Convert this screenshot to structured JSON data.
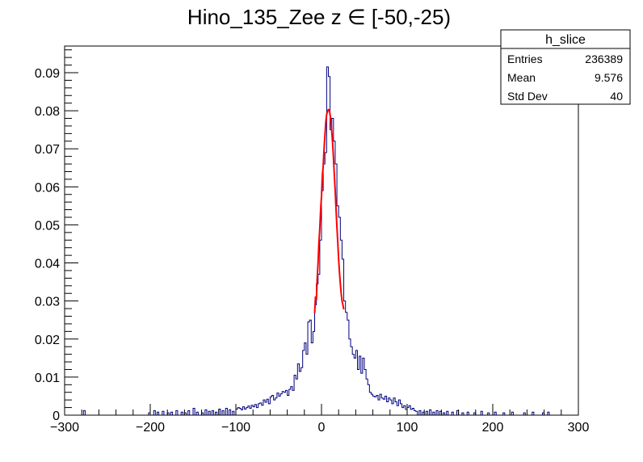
{
  "chart_data": {
    "type": "histogram",
    "title": "Hino_135_Zee z  ∈ [-50,-25)",
    "xlabel": "",
    "ylabel": "",
    "xlim": [
      -300,
      300
    ],
    "ylim": [
      0,
      0.097
    ],
    "x_ticks": [
      -300,
      -200,
      -100,
      0,
      100,
      200,
      300
    ],
    "x_tick_labels": [
      "−300",
      "−200",
      "−100",
      "0",
      "100",
      "200",
      "300"
    ],
    "y_ticks": [
      0,
      0.01,
      0.02,
      0.03,
      0.04,
      0.05,
      0.06,
      0.07,
      0.08,
      0.09
    ],
    "y_tick_labels": [
      "0",
      "0.01",
      "0.02",
      "0.03",
      "0.04",
      "0.05",
      "0.06",
      "0.07",
      "0.08",
      "0.09"
    ],
    "grid": false,
    "colors": {
      "histogram": "#000080",
      "fit": "#ff0000",
      "frame": "#000000"
    },
    "histogram": {
      "name": "h_slice",
      "bin_edges_start": -300,
      "bin_width": 2,
      "nonzero_bins": [
        {
          "x": -278,
          "y": 0.0012
        },
        {
          "x": -202,
          "y": 0.0006
        },
        {
          "x": -196,
          "y": 0.0012
        },
        {
          "x": -192,
          "y": 0.0008
        },
        {
          "x": -186,
          "y": 0.001
        },
        {
          "x": -180,
          "y": 0.0006
        },
        {
          "x": -176,
          "y": 0.0008
        },
        {
          "x": -170,
          "y": 0.0012
        },
        {
          "x": -164,
          "y": 0.0008
        },
        {
          "x": -160,
          "y": 0.0006
        },
        {
          "x": -156,
          "y": 0.0012
        },
        {
          "x": -150,
          "y": 0.0018
        },
        {
          "x": -146,
          "y": 0.0008
        },
        {
          "x": -140,
          "y": 0.0006
        },
        {
          "x": -136,
          "y": 0.0014
        },
        {
          "x": -132,
          "y": 0.001
        },
        {
          "x": -128,
          "y": 0.0012
        },
        {
          "x": -124,
          "y": 0.0008
        },
        {
          "x": -120,
          "y": 0.0016
        },
        {
          "x": -116,
          "y": 0.0012
        },
        {
          "x": -112,
          "y": 0.0018
        },
        {
          "x": -108,
          "y": 0.0014
        },
        {
          "x": -104,
          "y": 0.001
        },
        {
          "x": -100,
          "y": 0.0016
        },
        {
          "x": -98,
          "y": 0.002
        },
        {
          "x": -96,
          "y": 0.0018
        },
        {
          "x": -94,
          "y": 0.0014
        },
        {
          "x": -92,
          "y": 0.0022
        },
        {
          "x": -90,
          "y": 0.0016
        },
        {
          "x": -88,
          "y": 0.002
        },
        {
          "x": -86,
          "y": 0.0024
        },
        {
          "x": -84,
          "y": 0.0018
        },
        {
          "x": -82,
          "y": 0.0026
        },
        {
          "x": -80,
          "y": 0.0022
        },
        {
          "x": -78,
          "y": 0.0028
        },
        {
          "x": -76,
          "y": 0.002
        },
        {
          "x": -74,
          "y": 0.003
        },
        {
          "x": -72,
          "y": 0.0032
        },
        {
          "x": -70,
          "y": 0.0026
        },
        {
          "x": -68,
          "y": 0.004
        },
        {
          "x": -66,
          "y": 0.0034
        },
        {
          "x": -64,
          "y": 0.0042
        },
        {
          "x": -62,
          "y": 0.003
        },
        {
          "x": -60,
          "y": 0.0048
        },
        {
          "x": -58,
          "y": 0.0052
        },
        {
          "x": -56,
          "y": 0.004
        },
        {
          "x": -54,
          "y": 0.0045
        },
        {
          "x": -52,
          "y": 0.0058
        },
        {
          "x": -50,
          "y": 0.005
        },
        {
          "x": -48,
          "y": 0.0056
        },
        {
          "x": -46,
          "y": 0.0062
        },
        {
          "x": -44,
          "y": 0.006
        },
        {
          "x": -42,
          "y": 0.0065
        },
        {
          "x": -40,
          "y": 0.0052
        },
        {
          "x": -38,
          "y": 0.0068
        },
        {
          "x": -36,
          "y": 0.0075
        },
        {
          "x": -34,
          "y": 0.0065
        },
        {
          "x": -32,
          "y": 0.0105
        },
        {
          "x": -30,
          "y": 0.0095
        },
        {
          "x": -28,
          "y": 0.0135
        },
        {
          "x": -26,
          "y": 0.0115
        },
        {
          "x": -24,
          "y": 0.0125
        },
        {
          "x": -22,
          "y": 0.017
        },
        {
          "x": -20,
          "y": 0.019
        },
        {
          "x": -18,
          "y": 0.016
        },
        {
          "x": -16,
          "y": 0.0245
        },
        {
          "x": -14,
          "y": 0.025
        },
        {
          "x": -12,
          "y": 0.019
        },
        {
          "x": -10,
          "y": 0.022
        },
        {
          "x": -8,
          "y": 0.029
        },
        {
          "x": -6,
          "y": 0.0345
        },
        {
          "x": -4,
          "y": 0.037
        },
        {
          "x": -2,
          "y": 0.046
        },
        {
          "x": 0,
          "y": 0.059
        },
        {
          "x": 2,
          "y": 0.066
        },
        {
          "x": 4,
          "y": 0.069
        },
        {
          "x": 6,
          "y": 0.0915
        },
        {
          "x": 8,
          "y": 0.089
        },
        {
          "x": 10,
          "y": 0.075
        },
        {
          "x": 12,
          "y": 0.078
        },
        {
          "x": 14,
          "y": 0.072
        },
        {
          "x": 16,
          "y": 0.066
        },
        {
          "x": 18,
          "y": 0.055
        },
        {
          "x": 20,
          "y": 0.052
        },
        {
          "x": 22,
          "y": 0.046
        },
        {
          "x": 24,
          "y": 0.041
        },
        {
          "x": 26,
          "y": 0.03
        },
        {
          "x": 28,
          "y": 0.027
        },
        {
          "x": 30,
          "y": 0.025
        },
        {
          "x": 32,
          "y": 0.02
        },
        {
          "x": 34,
          "y": 0.018
        },
        {
          "x": 36,
          "y": 0.016
        },
        {
          "x": 38,
          "y": 0.015
        },
        {
          "x": 40,
          "y": 0.017
        },
        {
          "x": 42,
          "y": 0.012
        },
        {
          "x": 44,
          "y": 0.0155
        },
        {
          "x": 46,
          "y": 0.011
        },
        {
          "x": 48,
          "y": 0.015
        },
        {
          "x": 50,
          "y": 0.012
        },
        {
          "x": 52,
          "y": 0.0095
        },
        {
          "x": 54,
          "y": 0.008
        },
        {
          "x": 56,
          "y": 0.006
        },
        {
          "x": 58,
          "y": 0.0055
        },
        {
          "x": 60,
          "y": 0.005
        },
        {
          "x": 62,
          "y": 0.0048
        },
        {
          "x": 64,
          "y": 0.0052
        },
        {
          "x": 66,
          "y": 0.004
        },
        {
          "x": 68,
          "y": 0.0055
        },
        {
          "x": 70,
          "y": 0.0045
        },
        {
          "x": 72,
          "y": 0.0042
        },
        {
          "x": 74,
          "y": 0.005
        },
        {
          "x": 76,
          "y": 0.0035
        },
        {
          "x": 78,
          "y": 0.0045
        },
        {
          "x": 80,
          "y": 0.004
        },
        {
          "x": 82,
          "y": 0.003
        },
        {
          "x": 84,
          "y": 0.0045
        },
        {
          "x": 86,
          "y": 0.0035
        },
        {
          "x": 88,
          "y": 0.0025
        },
        {
          "x": 90,
          "y": 0.004
        },
        {
          "x": 92,
          "y": 0.003
        },
        {
          "x": 94,
          "y": 0.002
        },
        {
          "x": 96,
          "y": 0.0025
        },
        {
          "x": 98,
          "y": 0.0015
        },
        {
          "x": 100,
          "y": 0.002
        },
        {
          "x": 102,
          "y": 0.0025
        },
        {
          "x": 104,
          "y": 0.0015
        },
        {
          "x": 106,
          "y": 0.0018
        },
        {
          "x": 108,
          "y": 0.0012
        },
        {
          "x": 110,
          "y": 0.001
        },
        {
          "x": 114,
          "y": 0.0012
        },
        {
          "x": 118,
          "y": 0.0008
        },
        {
          "x": 122,
          "y": 0.001
        },
        {
          "x": 126,
          "y": 0.0014
        },
        {
          "x": 130,
          "y": 0.0008
        },
        {
          "x": 134,
          "y": 0.0012
        },
        {
          "x": 138,
          "y": 0.001
        },
        {
          "x": 142,
          "y": 0.0006
        },
        {
          "x": 146,
          "y": 0.001
        },
        {
          "x": 152,
          "y": 0.0008
        },
        {
          "x": 158,
          "y": 0.0012
        },
        {
          "x": 164,
          "y": 0.0006
        },
        {
          "x": 170,
          "y": 0.0008
        },
        {
          "x": 178,
          "y": 0.0006
        },
        {
          "x": 186,
          "y": 0.001
        },
        {
          "x": 194,
          "y": 0.0006
        },
        {
          "x": 202,
          "y": 0.0008
        },
        {
          "x": 212,
          "y": 0.0006
        },
        {
          "x": 222,
          "y": 0.0008
        },
        {
          "x": 236,
          "y": 0.0006
        },
        {
          "x": 246,
          "y": 0.0008
        },
        {
          "x": 258,
          "y": 0.0006
        },
        {
          "x": 264,
          "y": 0.0008
        }
      ]
    },
    "fit": {
      "type": "gaussian",
      "x_range": [
        -8,
        26
      ],
      "constant": 0.0802,
      "mean": 8.8,
      "sigma": 7.6,
      "wiggles": [
        {
          "x": -8,
          "y": 0.0268
        },
        {
          "x": -7,
          "y": 0.0312
        },
        {
          "x": -6,
          "y": 0.0302
        },
        {
          "x": -5,
          "y": 0.036
        },
        {
          "x": -4,
          "y": 0.04
        },
        {
          "x": -3,
          "y": 0.0455
        },
        {
          "x": -2,
          "y": 0.049
        },
        {
          "x": -1,
          "y": 0.054
        },
        {
          "x": 0,
          "y": 0.0575
        },
        {
          "x": 1,
          "y": 0.063
        },
        {
          "x": 2,
          "y": 0.0655
        },
        {
          "x": 3,
          "y": 0.07
        },
        {
          "x": 4,
          "y": 0.0735
        },
        {
          "x": 5,
          "y": 0.077
        },
        {
          "x": 6,
          "y": 0.079
        },
        {
          "x": 7,
          "y": 0.0798
        },
        {
          "x": 8,
          "y": 0.0803
        },
        {
          "x": 9,
          "y": 0.0802
        },
        {
          "x": 10,
          "y": 0.079
        },
        {
          "x": 11,
          "y": 0.0775
        },
        {
          "x": 12,
          "y": 0.0745
        },
        {
          "x": 13,
          "y": 0.0715
        },
        {
          "x": 14,
          "y": 0.0675
        },
        {
          "x": 15,
          "y": 0.063
        },
        {
          "x": 16,
          "y": 0.059
        },
        {
          "x": 17,
          "y": 0.054
        },
        {
          "x": 18,
          "y": 0.0495
        },
        {
          "x": 19,
          "y": 0.0455
        },
        {
          "x": 20,
          "y": 0.041
        },
        {
          "x": 21,
          "y": 0.0375
        },
        {
          "x": 22,
          "y": 0.0345
        },
        {
          "x": 23,
          "y": 0.032
        },
        {
          "x": 24,
          "y": 0.03
        },
        {
          "x": 25,
          "y": 0.029
        },
        {
          "x": 26,
          "y": 0.0278
        }
      ]
    },
    "stats_box": {
      "title": "h_slice",
      "rows": [
        {
          "label": "Entries",
          "value": "236389"
        },
        {
          "label": "Mean",
          "value": "9.576"
        },
        {
          "label": "Std Dev",
          "value": "40"
        }
      ]
    }
  }
}
